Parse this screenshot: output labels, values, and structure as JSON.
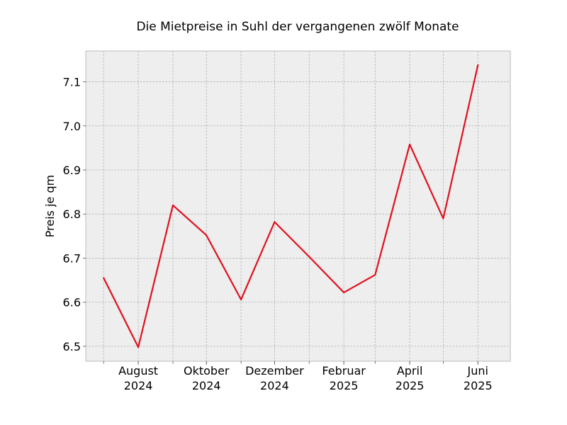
{
  "chart_data": {
    "type": "line",
    "title": "Die Mietpreise in Suhl der vergangenen zwölf Monate",
    "xlabel": "",
    "ylabel": "Preis je qm",
    "x": [
      "2024-07",
      "2024-08",
      "2024-09",
      "2024-10",
      "2024-11",
      "2024-12",
      "2025-01",
      "2025-02",
      "2025-03",
      "2025-04",
      "2025-05",
      "2025-06"
    ],
    "series": [
      {
        "values": [
          6.655,
          6.498,
          6.82,
          6.752,
          6.606,
          6.782,
          6.703,
          6.622,
          6.662,
          6.958,
          6.79,
          7.138
        ],
        "color": "#e0111e"
      }
    ],
    "x_ticks": [
      {
        "x": "2024-08",
        "line1": "August",
        "line2": "2024"
      },
      {
        "x": "2024-10",
        "line1": "Oktober",
        "line2": "2024"
      },
      {
        "x": "2024-12",
        "line1": "Dezember",
        "line2": "2024"
      },
      {
        "x": "2025-02",
        "line1": "Februar",
        "line2": "2025"
      },
      {
        "x": "2025-04",
        "line1": "April",
        "line2": "2025"
      },
      {
        "x": "2025-06",
        "line1": "Juni",
        "line2": "2025"
      }
    ],
    "y_ticks": [
      "6.5",
      "6.6",
      "6.7",
      "6.8",
      "6.9",
      "7.0",
      "7.1"
    ],
    "ylim": [
      6.466,
      7.17
    ],
    "xlim": [
      "2024-06-15",
      "2025-06-30"
    ],
    "grid": true,
    "background": "#eeeeee"
  }
}
